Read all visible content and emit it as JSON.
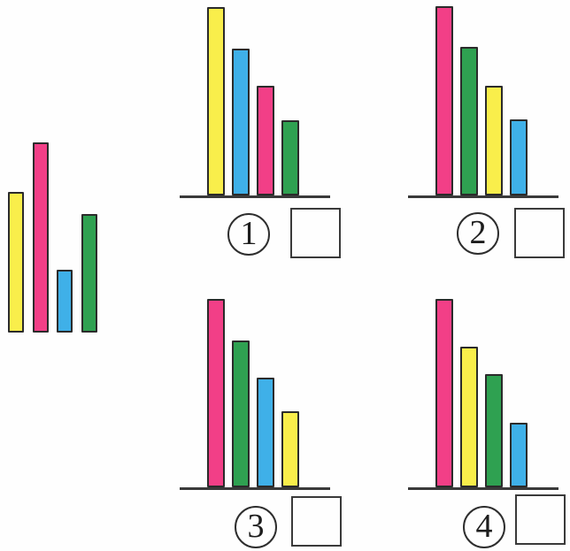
{
  "colors": {
    "yellow": "#F9EE4B",
    "pink": "#F23F87",
    "blue": "#3FB0E8",
    "green": "#2FA151",
    "outline": "#2b2b2b"
  },
  "chart_data": [
    {
      "id": "reference",
      "type": "bar",
      "role": "unsorted reference chart",
      "categories": [
        "yellow",
        "pink",
        "blue",
        "green"
      ],
      "values": [
        159,
        215,
        71,
        134
      ],
      "baseline": false
    },
    {
      "id": "option-1",
      "type": "bar",
      "role": "candidate sorted chart",
      "categories": [
        "yellow",
        "blue",
        "pink",
        "green"
      ],
      "values": [
        213,
        166,
        124,
        85
      ],
      "baseline": true
    },
    {
      "id": "option-2",
      "type": "bar",
      "role": "candidate sorted chart",
      "categories": [
        "pink",
        "green",
        "yellow",
        "blue"
      ],
      "values": [
        214,
        168,
        124,
        86
      ],
      "baseline": true
    },
    {
      "id": "option-3",
      "type": "bar",
      "role": "candidate sorted chart",
      "categories": [
        "pink",
        "green",
        "blue",
        "yellow"
      ],
      "values": [
        213,
        166,
        124,
        86
      ],
      "baseline": true
    },
    {
      "id": "option-4",
      "type": "bar",
      "role": "candidate sorted chart",
      "categories": [
        "pink",
        "yellow",
        "green",
        "blue"
      ],
      "values": [
        213,
        159,
        128,
        73
      ],
      "baseline": true
    }
  ],
  "options": [
    {
      "number": "1",
      "answer": ""
    },
    {
      "number": "2",
      "answer": ""
    },
    {
      "number": "3",
      "answer": ""
    },
    {
      "number": "4",
      "answer": ""
    }
  ]
}
